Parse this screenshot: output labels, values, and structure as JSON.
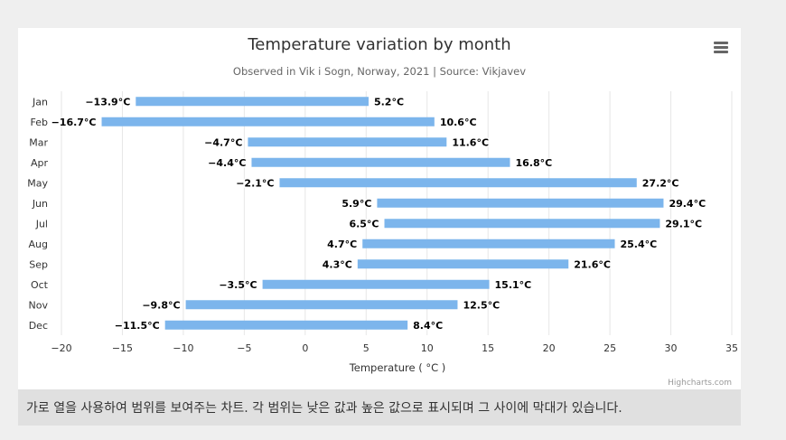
{
  "chart_data": {
    "type": "bar",
    "orientation": "horizontal",
    "title": "Temperature variation by month",
    "subtitle": "Observed in Vik i Sogn, Norway, 2021 | Source: Vikjavev",
    "xlabel": "Temperature ( °C )",
    "ylabel": "",
    "categories": [
      "Jan",
      "Feb",
      "Mar",
      "Apr",
      "May",
      "Jun",
      "Jul",
      "Aug",
      "Sep",
      "Oct",
      "Nov",
      "Dec"
    ],
    "series": [
      {
        "low": [
          -13.9,
          -16.7,
          -4.7,
          -4.4,
          -2.1,
          5.9,
          6.5,
          4.7,
          4.3,
          -3.5,
          -9.8,
          -11.5
        ],
        "high": [
          5.2,
          10.6,
          11.6,
          16.8,
          27.2,
          29.4,
          29.1,
          25.4,
          21.6,
          15.1,
          12.5,
          8.4
        ]
      }
    ],
    "low_labels": [
      "−13.9°C",
      "−16.7°C",
      "−4.7°C",
      "−4.4°C",
      "−2.1°C",
      "5.9°C",
      "6.5°C",
      "4.7°C",
      "4.3°C",
      "−3.5°C",
      "−9.8°C",
      "−11.5°C"
    ],
    "high_labels": [
      "5.2°C",
      "10.6°C",
      "11.6°C",
      "16.8°C",
      "27.2°C",
      "29.4°C",
      "29.1°C",
      "25.4°C",
      "21.6°C",
      "15.1°C",
      "12.5°C",
      "8.4°C"
    ],
    "xlim": [
      -20,
      35
    ],
    "xticks": [
      -20,
      -15,
      -10,
      -5,
      0,
      5,
      10,
      15,
      20,
      25,
      30,
      35
    ],
    "xtick_labels": [
      "−20",
      "−15",
      "−10",
      "−5",
      "0",
      "5",
      "10",
      "15",
      "20",
      "25",
      "30",
      "35"
    ],
    "grid": true,
    "legend": "none",
    "colors": {
      "bar": "#7cb5ec",
      "grid": "#e6e6e6",
      "title": "#333333",
      "subtitle": "#666666",
      "axis_text": "#333333",
      "credits": "#999999"
    }
  },
  "credits": "Highcharts.com",
  "menu_icon": "hamburger-icon",
  "description": "가로 열을 사용하여 범위를 보여주는 차트. 각 범위는 낮은 값과 높은 값으로 표시되며 그 사이에 막대가 있습니다."
}
